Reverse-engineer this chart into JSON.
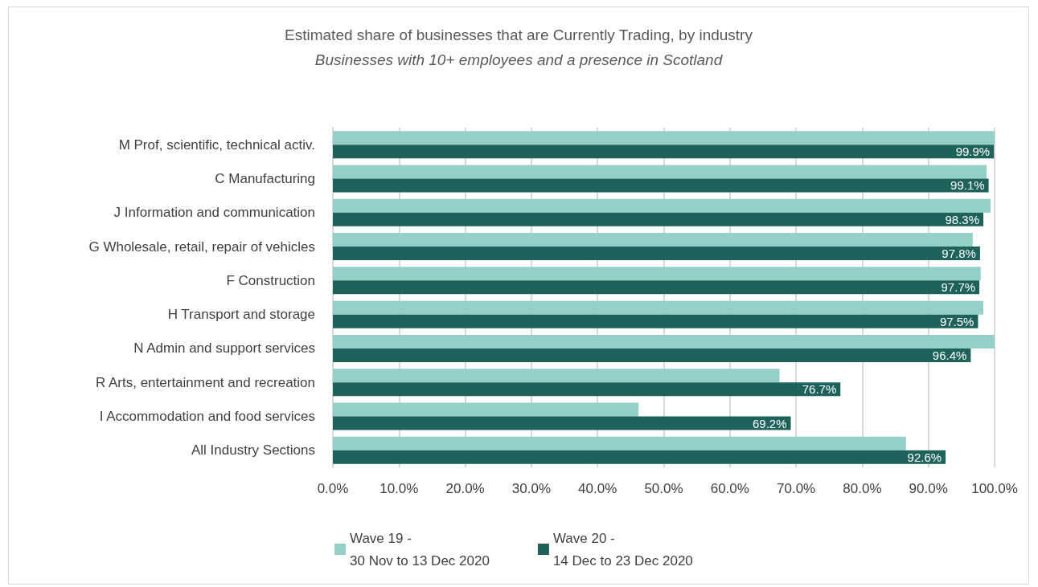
{
  "chart_data": {
    "type": "bar",
    "orientation": "horizontal",
    "title": "Estimated share of businesses that are Currently Trading, by industry",
    "subtitle": "Businesses with 10+ employees and a presence in Scotland",
    "categories": [
      "M Prof, scientific, technical activ.",
      "C Manufacturing",
      "J Information and communication",
      "G Wholesale, retail, repair of vehicles",
      "F Construction",
      "H Transport and storage",
      "N Admin and support services",
      "R Arts, entertainment and recreation",
      "I Accommodation and food services",
      "All Industry Sections"
    ],
    "series": [
      {
        "name": "Wave 19 -\n30 Nov to 13 Dec 2020",
        "color": "#94d0c9",
        "values": [
          100.0,
          98.8,
          99.4,
          96.7,
          97.9,
          98.3,
          100.0,
          67.5,
          46.2,
          86.6
        ]
      },
      {
        "name": "Wave 20 -\n14 Dec to 23 Dec 2020",
        "color": "#1d625b",
        "values": [
          99.9,
          99.1,
          98.3,
          97.8,
          97.7,
          97.5,
          96.4,
          76.7,
          69.2,
          92.6
        ],
        "value_labels": [
          "99.9%",
          "99.1%",
          "98.3%",
          "97.8%",
          "97.7%",
          "97.5%",
          "96.4%",
          "76.7%",
          "69.2%",
          "92.6%"
        ]
      }
    ],
    "xlim": [
      0,
      100
    ],
    "xticks": [
      {
        "value": 0,
        "label": "0.0%"
      },
      {
        "value": 10,
        "label": "10.0%"
      },
      {
        "value": 20,
        "label": "20.0%"
      },
      {
        "value": 30,
        "label": "30.0%"
      },
      {
        "value": 40,
        "label": "40.0%"
      },
      {
        "value": 50,
        "label": "50.0%"
      },
      {
        "value": 60,
        "label": "60.0%"
      },
      {
        "value": 70,
        "label": "70.0%"
      },
      {
        "value": 80,
        "label": "80.0%"
      },
      {
        "value": 90,
        "label": "90.0%"
      },
      {
        "value": 100,
        "label": "100.0%"
      }
    ],
    "grid": "x",
    "legend": "bottom"
  }
}
